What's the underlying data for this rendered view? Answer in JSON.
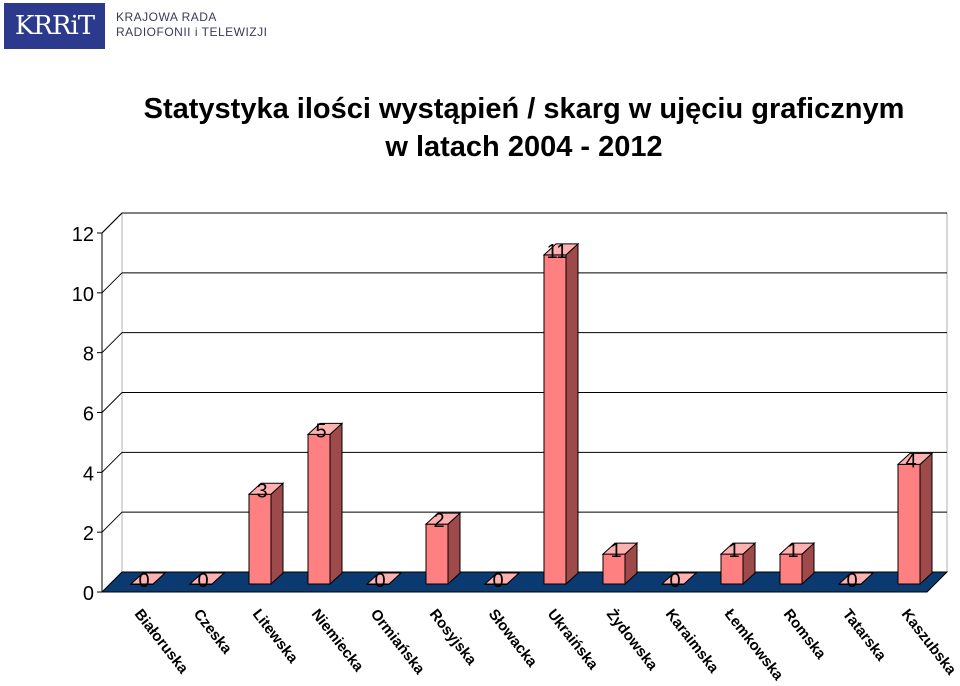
{
  "header": {
    "logo_mark": "KRRiT",
    "logo_line1": "KRAJOWA RADA",
    "logo_line2": "RADIOFONII i TELEWIZJI"
  },
  "title_line1": "Statystyka ilości wystąpień / skarg w ujęciu graficznym",
  "title_line2": "w latach 2004 - 2012",
  "colors": {
    "bar_front": "#ff8080",
    "bar_side": "#9e4a4a",
    "bar_top": "#ffb0b0",
    "floor": "#0b3a70"
  },
  "chart_data": {
    "type": "bar",
    "title": "Statystyka ilości wystąpień / skarg w ujęciu graficznym w latach 2004 - 2012",
    "categories": [
      "Białoruska",
      "Czeska",
      "Litewska",
      "Niemiecka",
      "Ormiańska",
      "Rosyjska",
      "Słowacka",
      "Ukraińska",
      "Żydowska",
      "Karaimska",
      "Łemkowska",
      "Romska",
      "Tatarska",
      "Kaszubska"
    ],
    "values": [
      0,
      0,
      3,
      5,
      0,
      2,
      0,
      11,
      1,
      0,
      1,
      1,
      0,
      4
    ],
    "data_labels": [
      "0",
      "0",
      "3",
      "5",
      "0",
      "2",
      "0",
      "11",
      "1",
      "0",
      "1",
      "1",
      "0",
      "4"
    ],
    "ylim": [
      0,
      12
    ],
    "yticks": [
      "0",
      "2",
      "4",
      "6",
      "8",
      "10",
      "12"
    ],
    "grid": true,
    "three_d": true
  }
}
